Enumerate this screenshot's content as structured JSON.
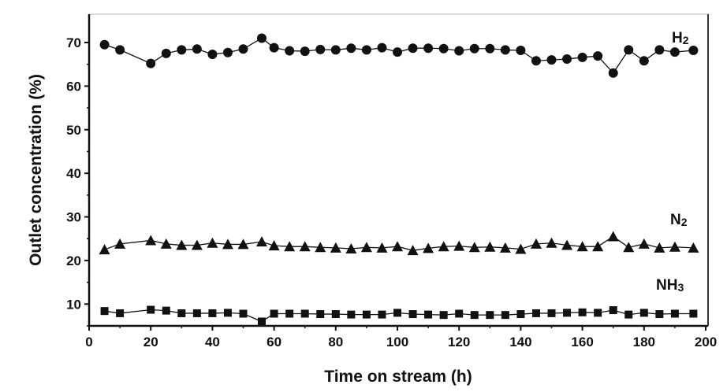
{
  "chart_data": {
    "type": "line",
    "title": "",
    "xlabel": "Time on stream (h)",
    "ylabel": "Outlet concentration (%)",
    "xlim": [
      0,
      200
    ],
    "ylim": [
      5,
      76.5
    ],
    "xticks": [
      0,
      20,
      40,
      60,
      80,
      100,
      120,
      140,
      160,
      180,
      200
    ],
    "yticks": [
      10,
      20,
      30,
      40,
      50,
      60,
      70
    ],
    "grid": false,
    "x": [
      5,
      10,
      20,
      25,
      30,
      35,
      40,
      45,
      50,
      56,
      60,
      65,
      70,
      75,
      80,
      85,
      90,
      95,
      100,
      105,
      110,
      115,
      120,
      125,
      130,
      135,
      140,
      145,
      150,
      155,
      160,
      165,
      170,
      175,
      180,
      185,
      190,
      196
    ],
    "series": [
      {
        "name": "H2",
        "label_main": "H",
        "label_sub": "2",
        "marker": "circle",
        "values": [
          69.5,
          68.3,
          65.2,
          67.5,
          68.3,
          68.5,
          67.3,
          67.7,
          68.5,
          71,
          68.8,
          68.1,
          68,
          68.4,
          68.3,
          68.7,
          68.3,
          68.8,
          67.8,
          68.7,
          68.7,
          68.6,
          68.1,
          68.6,
          68.6,
          68.3,
          68.2,
          65.8,
          66,
          66.2,
          66.6,
          66.9,
          63,
          68.3,
          65.8,
          68.3,
          67.8,
          68.2
        ]
      },
      {
        "name": "N2",
        "label_main": "N",
        "label_sub": "2",
        "marker": "triangle",
        "values": [
          22.5,
          23.8,
          24.6,
          23.8,
          23.5,
          23.5,
          24,
          23.7,
          23.7,
          24.3,
          23.4,
          23.2,
          23.2,
          23,
          22.9,
          22.7,
          23,
          22.9,
          23.2,
          22.3,
          22.8,
          23.2,
          23.3,
          23,
          23.1,
          22.9,
          22.6,
          23.8,
          24,
          23.5,
          23.2,
          23.2,
          25.5,
          23,
          23.8,
          22.9,
          23.1,
          22.9
        ]
      },
      {
        "name": "NH3",
        "label_main": "NH",
        "label_sub": "3",
        "marker": "square",
        "values": [
          8.4,
          7.9,
          8.7,
          8.5,
          7.9,
          7.9,
          7.9,
          8,
          7.8,
          6,
          7.8,
          7.8,
          7.8,
          7.7,
          7.7,
          7.6,
          7.6,
          7.6,
          8,
          7.7,
          7.6,
          7.5,
          7.8,
          7.5,
          7.5,
          7.5,
          7.7,
          7.9,
          7.9,
          8,
          8.1,
          8,
          8.6,
          7.6,
          8,
          7.7,
          7.8,
          7.8
        ]
      }
    ],
    "colors": {
      "marks": "#111111"
    }
  }
}
